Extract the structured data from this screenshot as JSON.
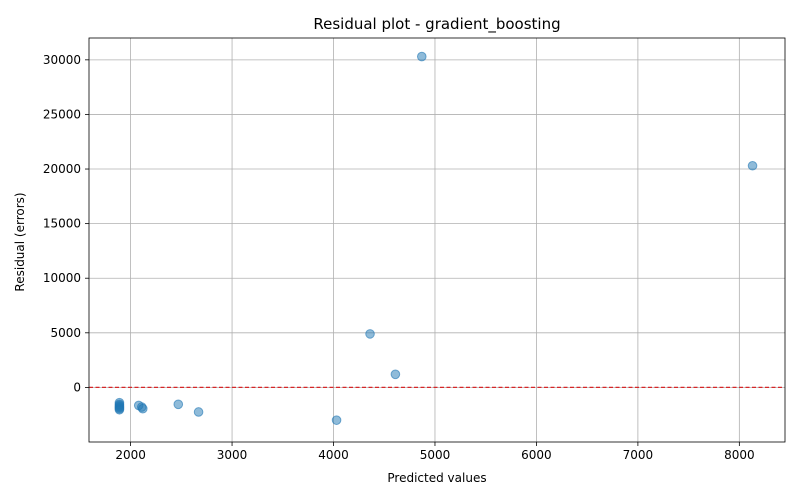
{
  "chart_data": {
    "type": "scatter",
    "title": "Residual plot - gradient_boosting",
    "xlabel": "Predicted values",
    "ylabel": "Residual (errors)",
    "xlim": [
      1590,
      8450
    ],
    "ylim": [
      -5000,
      32000
    ],
    "xticks": [
      2000,
      3000,
      4000,
      5000,
      6000,
      7000,
      8000
    ],
    "yticks": [
      0,
      5000,
      10000,
      15000,
      20000,
      25000,
      30000
    ],
    "grid": true,
    "reference_line": {
      "y": 0,
      "color": "#d62728",
      "style": "dashed"
    },
    "point_color": "#1f77b4",
    "points": [
      {
        "x": 4870,
        "y": 30300
      },
      {
        "x": 8130,
        "y": 20300
      },
      {
        "x": 4360,
        "y": 4900
      },
      {
        "x": 4610,
        "y": 1200
      },
      {
        "x": 1890,
        "y": -1400
      },
      {
        "x": 1890,
        "y": -1550
      },
      {
        "x": 1890,
        "y": -1650
      },
      {
        "x": 1890,
        "y": -1750
      },
      {
        "x": 1890,
        "y": -1850
      },
      {
        "x": 1890,
        "y": -1950
      },
      {
        "x": 1890,
        "y": -2050
      },
      {
        "x": 2080,
        "y": -1650
      },
      {
        "x": 2110,
        "y": -1800
      },
      {
        "x": 2120,
        "y": -1950
      },
      {
        "x": 2470,
        "y": -1550
      },
      {
        "x": 2670,
        "y": -2250
      },
      {
        "x": 4030,
        "y": -3000
      }
    ]
  }
}
